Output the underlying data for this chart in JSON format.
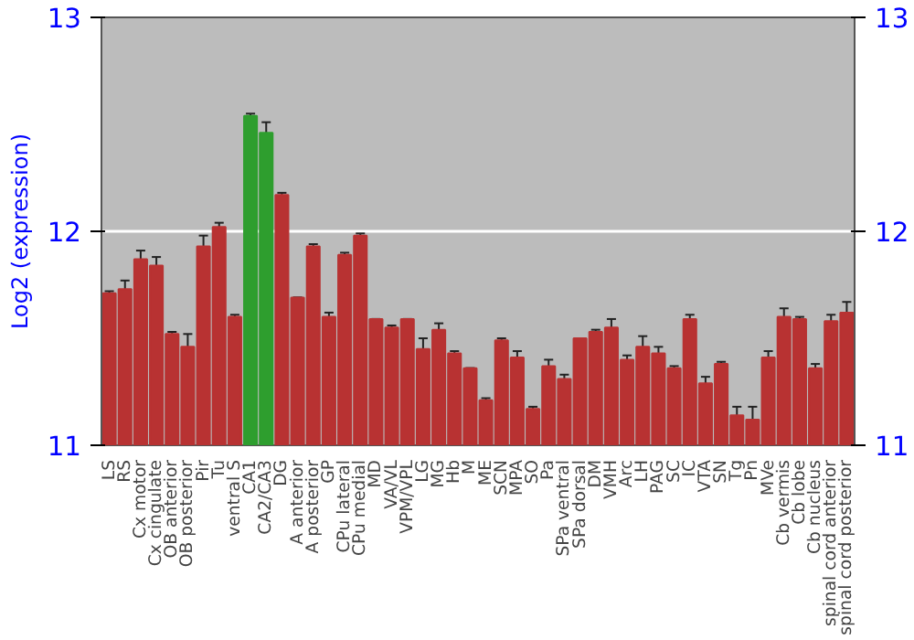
{
  "chart_data": {
    "type": "bar",
    "ylabel": "Log2 (expression)",
    "categories": [
      "LS",
      "RS",
      "Cx motor",
      "Cx cingulate",
      "OB anterior",
      "OB posterior",
      "Pir",
      "Tu",
      "ventral S",
      "CA1",
      "CA2/CA3",
      "DG",
      "A anterior",
      "A posterior",
      "GP",
      "CPu lateral",
      "CPu medial",
      "MD",
      "VA/VL",
      "VPM/VPL",
      "LG",
      "MG",
      "Hb",
      "M",
      "ME",
      "SCN",
      "MPA",
      "SO",
      "Pa",
      "SPa ventral",
      "SPa dorsal",
      "DM",
      "VMH",
      "Arc",
      "LH",
      "PAG",
      "SC",
      "IC",
      "VTA",
      "SN",
      "Tg",
      "Pn",
      "MVe",
      "Cb vermis",
      "Cb lobe",
      "Cb nucleus",
      "spinal cord anterior",
      "spinal cord posterior"
    ],
    "values": [
      11.71,
      11.73,
      11.87,
      11.84,
      11.52,
      11.46,
      11.93,
      12.02,
      11.6,
      12.54,
      12.46,
      12.17,
      11.69,
      11.93,
      11.6,
      11.89,
      11.98,
      11.59,
      11.55,
      11.59,
      11.45,
      11.54,
      11.43,
      11.36,
      11.21,
      11.49,
      11.41,
      11.17,
      11.37,
      11.31,
      11.5,
      11.53,
      11.55,
      11.4,
      11.46,
      11.43,
      11.36,
      11.59,
      11.29,
      11.38,
      11.14,
      11.12,
      11.41,
      11.6,
      11.59,
      11.36,
      11.58,
      11.62
    ],
    "errors": [
      0.01,
      0.04,
      0.04,
      0.04,
      0.01,
      0.06,
      0.05,
      0.02,
      0.01,
      0.01,
      0.05,
      0.01,
      0.0,
      0.01,
      0.02,
      0.01,
      0.01,
      0.0,
      0.01,
      0.0,
      0.05,
      0.03,
      0.01,
      0.0,
      0.01,
      0.01,
      0.03,
      0.01,
      0.03,
      0.02,
      0.0,
      0.01,
      0.04,
      0.02,
      0.05,
      0.03,
      0.01,
      0.02,
      0.03,
      0.01,
      0.04,
      0.06,
      0.03,
      0.04,
      0.01,
      0.02,
      0.03,
      0.05
    ],
    "colors": [
      "#b83232",
      "#b83232",
      "#b83232",
      "#b83232",
      "#b83232",
      "#b83232",
      "#b83232",
      "#b83232",
      "#b83232",
      "#2e9e2e",
      "#2e9e2e",
      "#b83232",
      "#b83232",
      "#b83232",
      "#b83232",
      "#b83232",
      "#b83232",
      "#b83232",
      "#b83232",
      "#b83232",
      "#b83232",
      "#b83232",
      "#b83232",
      "#b83232",
      "#b83232",
      "#b83232",
      "#b83232",
      "#b83232",
      "#b83232",
      "#b83232",
      "#b83232",
      "#b83232",
      "#b83232",
      "#b83232",
      "#b83232",
      "#b83232",
      "#b83232",
      "#b83232",
      "#b83232",
      "#b83232",
      "#b83232",
      "#b83232",
      "#b83232",
      "#b83232",
      "#b83232",
      "#b83232",
      "#b83232",
      "#b83232"
    ],
    "ylim": [
      11,
      13
    ],
    "yticks": [
      11,
      12,
      13
    ],
    "y2lim": [
      11,
      13
    ],
    "y2ticks": [
      11,
      12,
      13
    ],
    "grid": "y"
  }
}
